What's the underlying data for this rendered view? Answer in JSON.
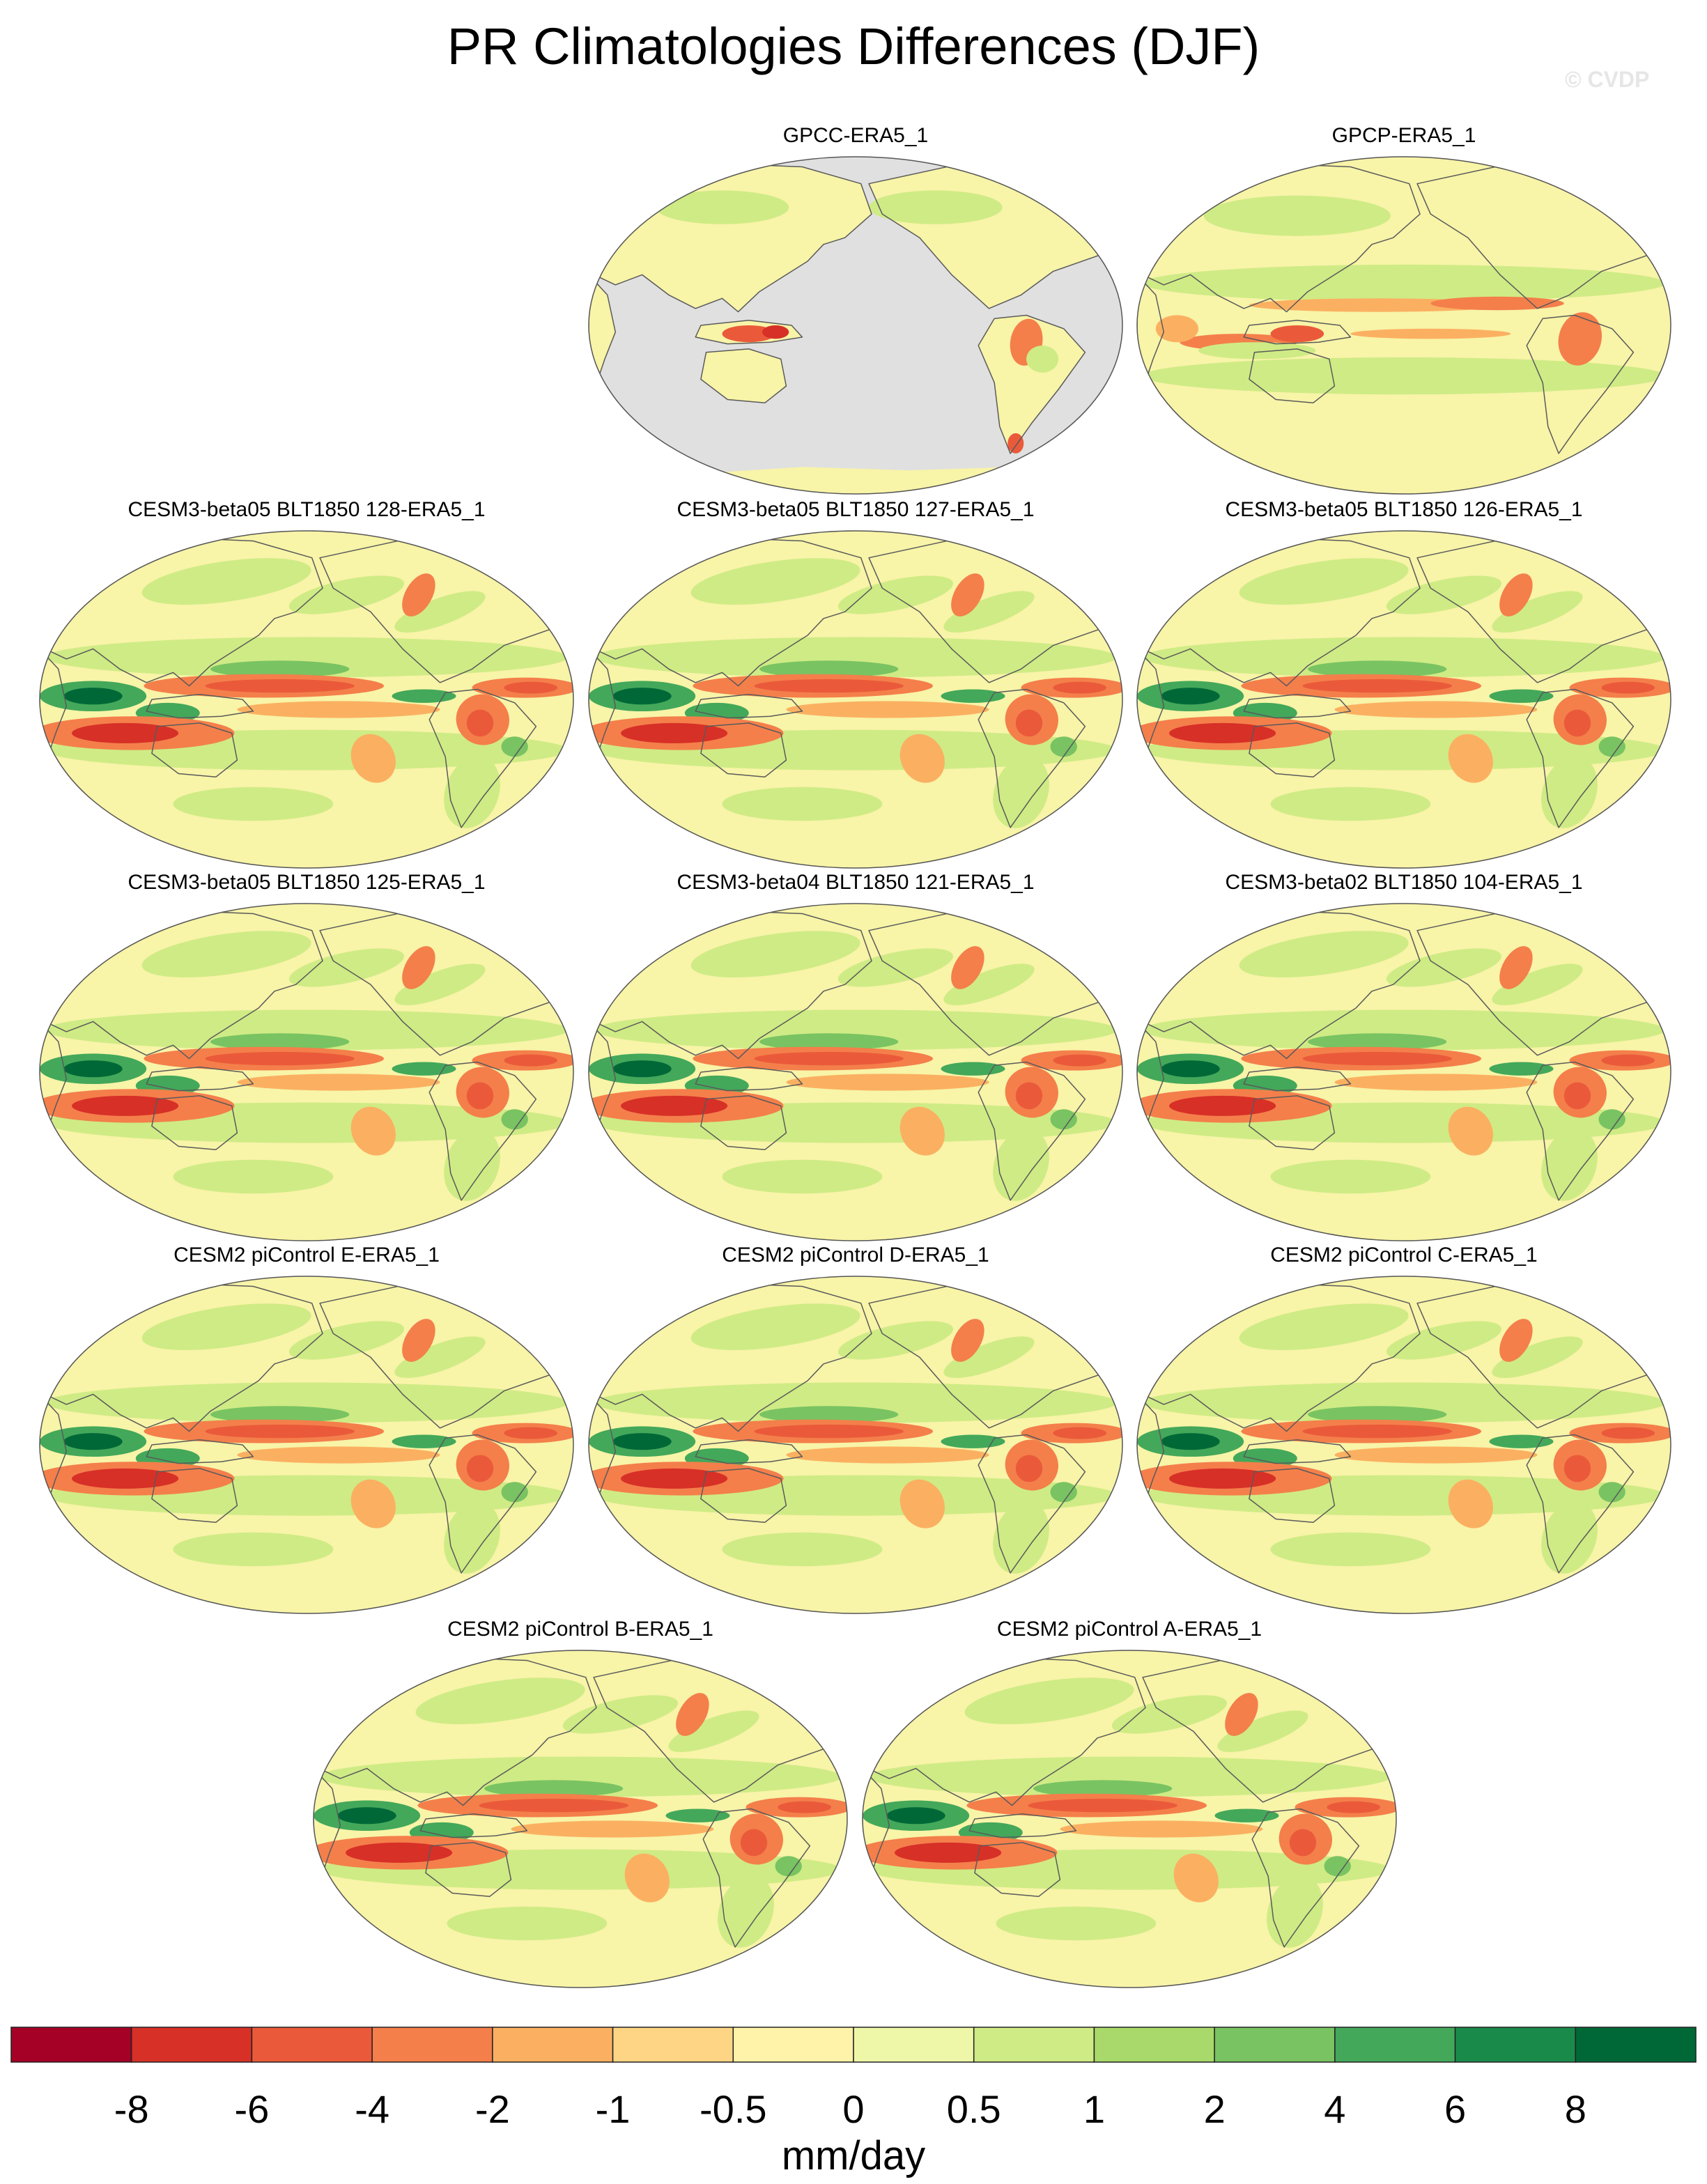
{
  "title": "PR Climatologies Differences (DJF)",
  "watermark": "© CVDP",
  "colors": {
    "land_mask": "#e0e0e0",
    "coast": "#5a5a5a",
    "neutral": "#f8f4a8"
  },
  "chart_data": {
    "type": "heatmap",
    "projection": "Robinson, Pacific-centered",
    "season": "DJF",
    "variable": "PR",
    "units": "mm/day",
    "panels": [
      {
        "title": "GPCC-ERA5_1",
        "ocean_masked": true,
        "pattern": "obs_gpcc"
      },
      {
        "title": "GPCP-ERA5_1",
        "ocean_masked": false,
        "pattern": "obs_gpcp"
      },
      {
        "title": "CESM3-beta05 BLT1850 128-ERA5_1",
        "ocean_masked": false,
        "pattern": "model"
      },
      {
        "title": "CESM3-beta05 BLT1850 127-ERA5_1",
        "ocean_masked": false,
        "pattern": "model"
      },
      {
        "title": "CESM3-beta05 BLT1850 126-ERA5_1",
        "ocean_masked": false,
        "pattern": "model"
      },
      {
        "title": "CESM3-beta05 BLT1850 125-ERA5_1",
        "ocean_masked": false,
        "pattern": "model"
      },
      {
        "title": "CESM3-beta04 BLT1850 121-ERA5_1",
        "ocean_masked": false,
        "pattern": "model"
      },
      {
        "title": "CESM3-beta02 BLT1850 104-ERA5_1",
        "ocean_masked": false,
        "pattern": "model"
      },
      {
        "title": "CESM2 piControl E-ERA5_1",
        "ocean_masked": false,
        "pattern": "model"
      },
      {
        "title": "CESM2 piControl D-ERA5_1",
        "ocean_masked": false,
        "pattern": "model"
      },
      {
        "title": "CESM2 piControl C-ERA5_1",
        "ocean_masked": false,
        "pattern": "model"
      },
      {
        "title": "CESM2 piControl B-ERA5_1",
        "ocean_masked": false,
        "pattern": "model"
      },
      {
        "title": "CESM2 piControl A-ERA5_1",
        "ocean_masked": false,
        "pattern": "model"
      }
    ],
    "colorbar": {
      "colors": [
        "#a50026",
        "#d73027",
        "#ea5a3a",
        "#f47f4b",
        "#fbb061",
        "#fdd585",
        "#fef3a8",
        "#eef6a8",
        "#cfeb85",
        "#a9d96a",
        "#79c362",
        "#43a85a",
        "#1a8a4a",
        "#006837"
      ],
      "labels": [
        "-8",
        "-6",
        "-4",
        "-2",
        "-1",
        "-0.5",
        "0",
        "0.5",
        "1",
        "2",
        "4",
        "6",
        "8"
      ],
      "units": "mm/day"
    }
  }
}
